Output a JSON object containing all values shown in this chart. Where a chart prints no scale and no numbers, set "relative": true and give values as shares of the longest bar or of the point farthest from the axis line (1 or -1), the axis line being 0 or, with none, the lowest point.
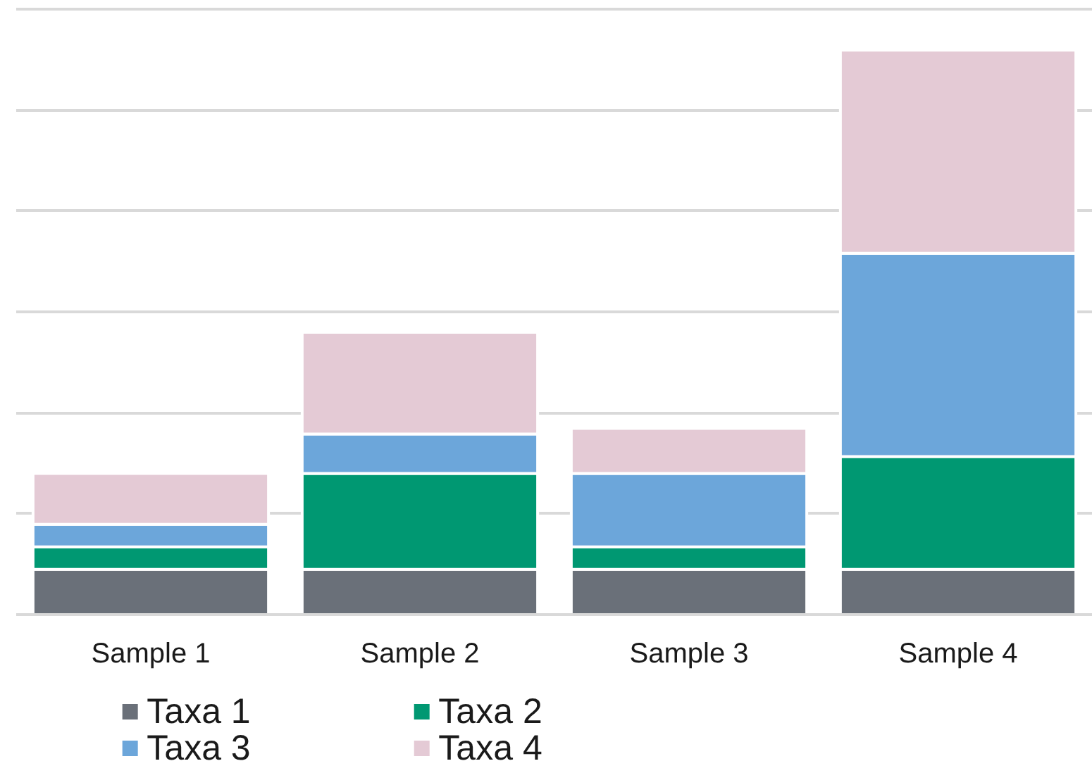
{
  "chart_data": {
    "type": "bar",
    "stacked": true,
    "relative": true,
    "categories": [
      "Sample 1",
      "Sample 2",
      "Sample 3",
      "Sample 4"
    ],
    "series": [
      {
        "name": "Taxa 1",
        "color": "#6a7079",
        "values": [
          0.08,
          0.08,
          0.08,
          0.08
        ]
      },
      {
        "name": "Taxa 2",
        "color": "#009872",
        "values": [
          0.04,
          0.17,
          0.04,
          0.2
        ]
      },
      {
        "name": "Taxa 3",
        "color": "#6ca6da",
        "values": [
          0.04,
          0.07,
          0.13,
          0.36
        ]
      },
      {
        "name": "Taxa 4",
        "color": "#e4cad5",
        "values": [
          0.09,
          0.18,
          0.08,
          0.36
        ]
      }
    ],
    "grid": "y",
    "legend": "bottom"
  }
}
